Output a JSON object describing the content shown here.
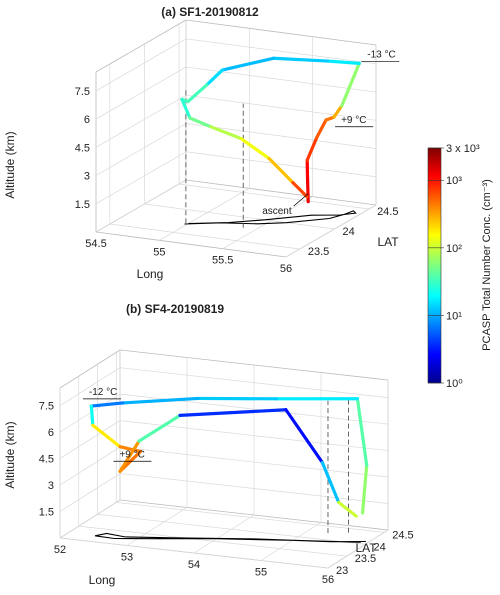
{
  "chart_data": [
    {
      "type": "line",
      "title": "(a) SF1-20190812",
      "zlabel": "Altitude (km)",
      "xlabel": "Long",
      "ylabel": "LAT",
      "z_ticks": [
        "1.5",
        "3",
        "4.5",
        "6",
        "7.5"
      ],
      "x_ticks": [
        "54.5",
        "55",
        "55.5",
        "56"
      ],
      "y_ticks": [
        "23.5",
        "24",
        "24.5"
      ],
      "xlim": [
        54.5,
        56.0
      ],
      "ylim": [
        23.3,
        24.6
      ],
      "zlim": [
        0,
        8.5
      ],
      "annotations": [
        {
          "text": "-13 °C",
          "lon": 55.95,
          "lat": 24.45,
          "alt": 7.9
        },
        {
          "text": "+9 °C",
          "lon": 55.88,
          "lat": 24.2,
          "alt": 4.9
        },
        {
          "text": "ascent",
          "lon": 55.82,
          "lat": 24.0,
          "alt": 1.8
        }
      ],
      "flight_path_3d": [
        {
          "lon": 55.82,
          "lat": 23.95,
          "alt": 1.4,
          "conc": 1000
        },
        {
          "lon": 55.76,
          "lat": 24.05,
          "alt": 2.4,
          "conc": 1500
        },
        {
          "lon": 55.73,
          "lat": 24.1,
          "alt": 3.2,
          "conc": 800
        },
        {
          "lon": 55.75,
          "lat": 24.2,
          "alt": 4.2,
          "conc": 600
        },
        {
          "lon": 55.78,
          "lat": 24.28,
          "alt": 5.0,
          "conc": 500
        },
        {
          "lon": 55.82,
          "lat": 24.32,
          "alt": 5.1,
          "conc": 400
        },
        {
          "lon": 55.85,
          "lat": 24.38,
          "alt": 5.6,
          "conc": 200
        },
        {
          "lon": 55.95,
          "lat": 24.45,
          "alt": 7.8,
          "conc": 20
        },
        {
          "lon": 55.7,
          "lat": 24.45,
          "alt": 7.7,
          "conc": 15
        },
        {
          "lon": 55.3,
          "lat": 24.4,
          "alt": 7.6,
          "conc": 12
        },
        {
          "lon": 55.06,
          "lat": 24.1,
          "alt": 7.4,
          "conc": 12
        },
        {
          "lon": 55.02,
          "lat": 23.95,
          "alt": 6.9,
          "conc": 20
        },
        {
          "lon": 54.98,
          "lat": 23.75,
          "alt": 6.4,
          "conc": 60
        },
        {
          "lon": 54.96,
          "lat": 23.7,
          "alt": 6.6,
          "conc": 20
        },
        {
          "lon": 55.05,
          "lat": 23.65,
          "alt": 5.8,
          "conc": 40
        },
        {
          "lon": 55.2,
          "lat": 23.68,
          "alt": 5.4,
          "conc": 60
        },
        {
          "lon": 55.4,
          "lat": 23.75,
          "alt": 4.8,
          "conc": 120
        },
        {
          "lon": 55.55,
          "lat": 23.88,
          "alt": 3.6,
          "conc": 150
        },
        {
          "lon": 55.7,
          "lat": 23.95,
          "alt": 2.3,
          "conc": 400
        },
        {
          "lon": 55.8,
          "lat": 23.97,
          "alt": 1.6,
          "conc": 1000
        }
      ],
      "ground_track": [
        {
          "lon": 54.98,
          "lat": 23.7
        },
        {
          "lon": 55.2,
          "lat": 23.82
        },
        {
          "lon": 55.45,
          "lat": 23.9
        },
        {
          "lon": 55.62,
          "lat": 24.0
        },
        {
          "lon": 55.85,
          "lat": 24.2
        },
        {
          "lon": 55.9,
          "lat": 24.32
        },
        {
          "lon": 55.92,
          "lat": 24.42
        },
        {
          "lon": 55.96,
          "lat": 24.38
        },
        {
          "lon": 55.88,
          "lat": 24.3
        },
        {
          "lon": 55.7,
          "lat": 24.22
        },
        {
          "lon": 55.45,
          "lat": 24.0
        },
        {
          "lon": 55.25,
          "lat": 23.85
        },
        {
          "lon": 55.0,
          "lat": 23.72
        }
      ],
      "drop_lines": [
        {
          "lon": 54.98,
          "lat": 23.72,
          "alt": 7.1
        },
        {
          "lon": 55.4,
          "lat": 23.78,
          "alt": 6.6
        }
      ]
    },
    {
      "type": "line",
      "title": "(b) SF4-20190819",
      "zlabel": "Altitude (km)",
      "xlabel": "Long",
      "ylabel": "LAT",
      "z_ticks": [
        "1.5",
        "3",
        "4.5",
        "6",
        "7.5"
      ],
      "x_ticks": [
        "52",
        "53",
        "54",
        "55",
        "56"
      ],
      "y_ticks": [
        "23",
        "23.5",
        "24",
        "24.5"
      ],
      "xlim": [
        52,
        56
      ],
      "ylim": [
        23.0,
        24.6
      ],
      "zlim": [
        0,
        8.5
      ],
      "annotations": [
        {
          "text": "-12 °C",
          "lon": 52.2,
          "lat": 23.2,
          "alt": 7.7
        },
        {
          "text": "+9 °C",
          "lon": 52.6,
          "lat": 23.3,
          "alt": 4.2
        }
      ],
      "flight_path_3d": [
        {
          "lon": 55.9,
          "lat": 24.1,
          "alt": 1.6,
          "conc": 50
        },
        {
          "lon": 55.85,
          "lat": 24.3,
          "alt": 4.0,
          "conc": 80
        },
        {
          "lon": 55.6,
          "lat": 24.5,
          "alt": 7.4,
          "conc": 20
        },
        {
          "lon": 54.5,
          "lat": 24.3,
          "alt": 7.2,
          "conc": 15
        },
        {
          "lon": 53.5,
          "lat": 24.0,
          "alt": 7.2,
          "conc": 12
        },
        {
          "lon": 52.6,
          "lat": 23.6,
          "alt": 7.1,
          "conc": 10
        },
        {
          "lon": 52.3,
          "lat": 23.3,
          "alt": 7.2,
          "conc": 5
        },
        {
          "lon": 52.35,
          "lat": 23.25,
          "alt": 6.2,
          "conc": 100
        },
        {
          "lon": 52.7,
          "lat": 23.35,
          "alt": 5.0,
          "conc": 300
        },
        {
          "lon": 52.95,
          "lat": 23.45,
          "alt": 4.7,
          "conc": 500
        },
        {
          "lon": 52.7,
          "lat": 23.35,
          "alt": 3.6,
          "conc": 400
        },
        {
          "lon": 52.9,
          "lat": 23.5,
          "alt": 5.2,
          "conc": 300
        },
        {
          "lon": 53.4,
          "lat": 23.7,
          "alt": 6.6,
          "conc": 5
        },
        {
          "lon": 54.7,
          "lat": 24.2,
          "alt": 6.8,
          "conc": 3
        },
        {
          "lon": 55.3,
          "lat": 24.1,
          "alt": 4.2,
          "conc": 3
        },
        {
          "lon": 55.6,
          "lat": 24.0,
          "alt": 2.2,
          "conc": 50
        },
        {
          "lon": 55.85,
          "lat": 24.02,
          "alt": 1.5,
          "conc": 200
        }
      ],
      "ground_track": [
        {
          "lon": 55.9,
          "lat": 24.05
        },
        {
          "lon": 55.0,
          "lat": 23.85
        },
        {
          "lon": 54.0,
          "lat": 23.6
        },
        {
          "lon": 53.2,
          "lat": 23.35
        },
        {
          "lon": 52.7,
          "lat": 23.2
        },
        {
          "lon": 52.4,
          "lat": 23.22
        },
        {
          "lon": 52.5,
          "lat": 23.35
        },
        {
          "lon": 52.8,
          "lat": 23.3
        },
        {
          "lon": 53.4,
          "lat": 23.45
        },
        {
          "lon": 54.5,
          "lat": 23.75
        },
        {
          "lon": 55.5,
          "lat": 23.95
        },
        {
          "lon": 55.95,
          "lat": 24.1
        }
      ],
      "drop_lines": [
        {
          "lon": 55.3,
          "lat": 24.25,
          "alt": 7.5
        },
        {
          "lon": 55.55,
          "lat": 24.35,
          "alt": 7.6
        }
      ]
    }
  ],
  "colorbar": {
    "label": "PCASP Total Number Conc. (cm⁻³)",
    "scale": "log",
    "range": [
      1,
      3000
    ],
    "ticks": [
      {
        "value": 1,
        "label": "10⁰"
      },
      {
        "value": 10,
        "label": "10¹"
      },
      {
        "value": 100,
        "label": "10²"
      },
      {
        "value": 1000,
        "label": "10³"
      },
      {
        "value": 3000,
        "label": "3 x 10³"
      }
    ]
  }
}
